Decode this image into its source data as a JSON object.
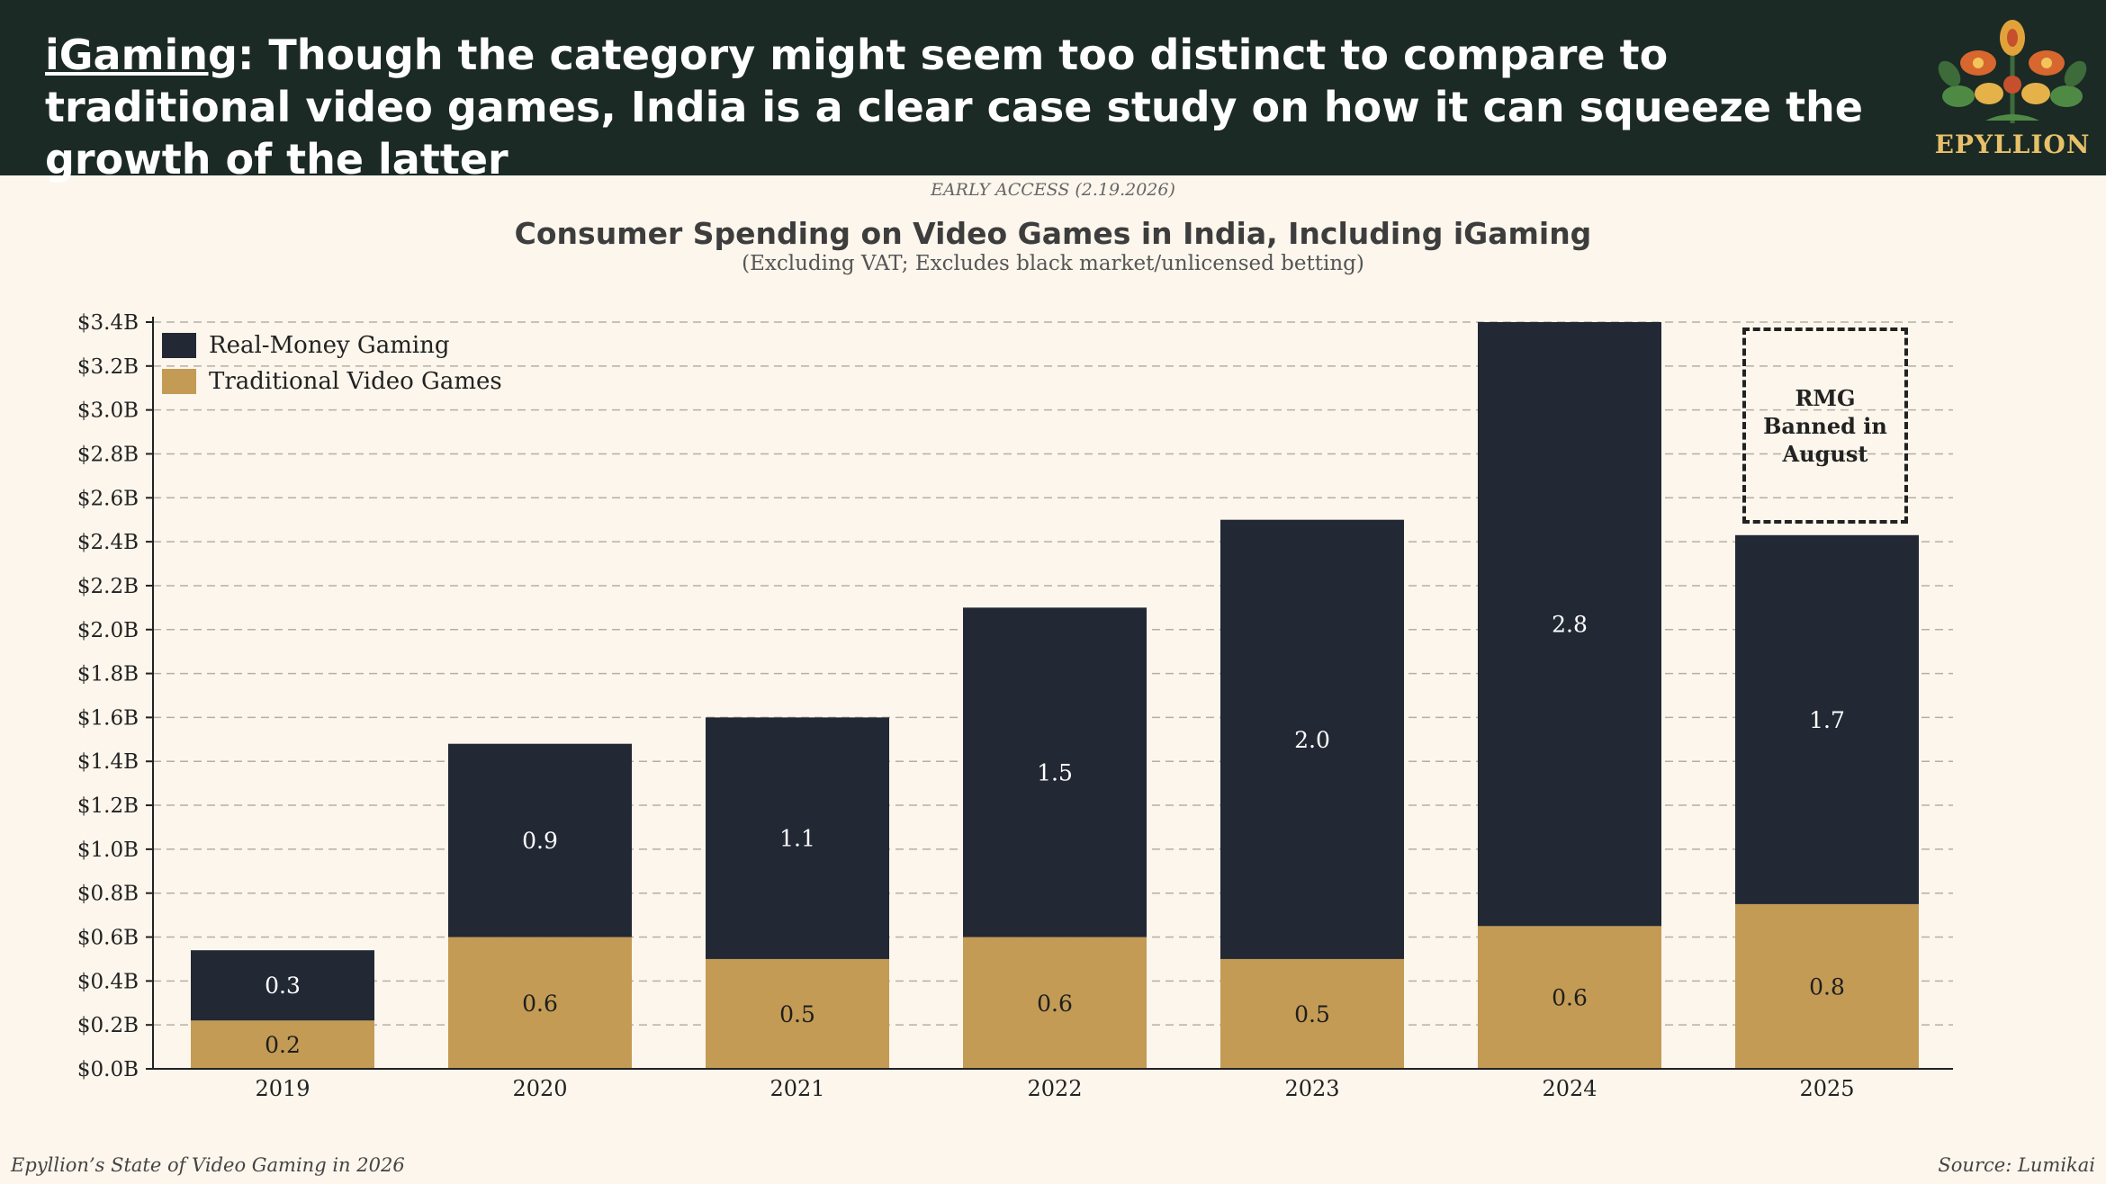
{
  "header": {
    "headline_keyword": "iGaming",
    "headline_rest": ": Though the category might seem too distinct to compare to traditional video games, India is a clear case study on how it can squeeze the growth of the latter",
    "brand": "EPYLLION",
    "logo_icon": "floral-tree-logo-icon"
  },
  "early_access": "EARLY ACCESS (2.19.2026)",
  "footer": {
    "left": "Epyllion’s State of Video Gaming in 2026",
    "right": "Source: Lumikai"
  },
  "colors": {
    "header_bg": "#1b2a24",
    "background": "#fcf6ec",
    "rmg": "#222834",
    "traditional": "#c39b55",
    "brand": "#e8c06a"
  },
  "chart_data": {
    "type": "bar",
    "stacked": true,
    "title": "Consumer Spending on Video Games in India, Including iGaming",
    "subtitle": "(Excluding VAT; Excludes black market/unlicensed betting)",
    "categories": [
      "2019",
      "2020",
      "2021",
      "2022",
      "2023",
      "2024",
      "2025"
    ],
    "series": [
      {
        "name": "Traditional Video Games",
        "values": [
          0.22,
          0.6,
          0.5,
          0.6,
          0.5,
          0.65,
          0.75
        ],
        "labels": [
          "0.2",
          "0.6",
          "0.5",
          "0.6",
          "0.5",
          "0.6",
          "0.8"
        ],
        "color": "#c39b55"
      },
      {
        "name": "Real-Money Gaming",
        "values": [
          0.32,
          0.88,
          1.1,
          1.5,
          2.0,
          2.75,
          1.68
        ],
        "labels": [
          "0.3",
          "0.9",
          "1.1",
          "1.5",
          "2.0",
          "2.8",
          "1.7"
        ],
        "color": "#222834"
      }
    ],
    "legend": [
      {
        "name": "Real-Money Gaming",
        "color": "#222834"
      },
      {
        "name": "Traditional Video Games",
        "color": "#c39b55"
      }
    ],
    "legend_position": "top-left",
    "ylim": [
      0,
      3.4
    ],
    "yticks": [
      "$0.0B",
      "$0.2B",
      "$0.4B",
      "$0.6B",
      "$0.8B",
      "$1.0B",
      "$1.2B",
      "$1.4B",
      "$1.6B",
      "$1.8B",
      "$2.0B",
      "$2.2B",
      "$2.4B",
      "$2.6B",
      "$2.8B",
      "$3.0B",
      "$3.2B",
      "$3.4B"
    ],
    "ytick_values": [
      0,
      0.2,
      0.4,
      0.6,
      0.8,
      1.0,
      1.2,
      1.4,
      1.6,
      1.8,
      2.0,
      2.2,
      2.4,
      2.6,
      2.8,
      3.0,
      3.2,
      3.4
    ],
    "grid": "horizontal-dashed",
    "annotation": {
      "category": "2025",
      "text": "RMG Banned in August",
      "style": "dashed-box"
    }
  }
}
